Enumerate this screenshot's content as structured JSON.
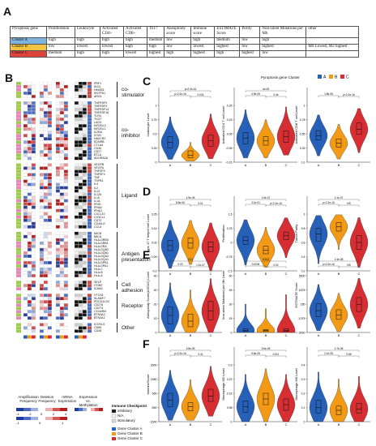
{
  "panels": {
    "a": "A",
    "b": "B",
    "c": "C",
    "d": "D",
    "e": "E",
    "f": "F"
  },
  "table": {
    "headers": [
      "Pyroptosis gene",
      "Proliferation",
      "Leukocyte",
      "Activated CD4+",
      "Activated CD8+",
      "Th17",
      "Aneuploidy score",
      "Immune score",
      "ESTIMATE Score",
      "Purity",
      "Non-silent Mutations per Mb",
      "other"
    ],
    "rows": [
      {
        "cluster": "Cluster A",
        "cls": "cA",
        "cells": [
          "high",
          "high",
          "high",
          "high",
          "medium",
          "low",
          "high",
          "medium",
          "low",
          "high",
          ""
        ]
      },
      {
        "cluster": "Cluster B",
        "cls": "cB",
        "cells": [
          "low",
          "lowest",
          "lowest",
          "high",
          "high",
          "low",
          "lowest",
          "highest",
          "low",
          "highest",
          "M0 Lowest, M2 highest"
        ]
      },
      {
        "cluster": "Cluster C",
        "cls": "cC",
        "cells": [
          "medium",
          "high",
          "high",
          "lowest",
          "highest",
          "high",
          "highest",
          "high",
          "highest",
          "low",
          ""
        ]
      }
    ]
  },
  "heatmap": {
    "column_labels": [
      "Amplification Frequency",
      "Deletion Frequency",
      "mRNA Expression",
      "Expression vs. Methylation"
    ],
    "genes": [
      "PRF1",
      "IDO1",
      "HMGB1",
      "ENTPD1",
      "ARG1",
      "",
      "TNFRSF9",
      "TNFRSF4",
      "TNFRSF14",
      "TNFRSF18",
      "TLR4",
      "TIGIT",
      "LAG3",
      "KIR2DL3",
      "KIR2DL1",
      "IL2RA",
      "ICOS",
      "HAVCR2",
      "EDNRB",
      "CTLA4",
      "CD40",
      "CD27",
      "BTLA",
      "ADORA2A",
      "",
      "VEGFB",
      "VEGFA",
      "TNFSF9",
      "TNFSF4",
      "TNF",
      "TGFB1",
      "IL4",
      "IL2",
      "IL13",
      "IL12A",
      "IL10",
      "IL1A",
      "IFNG",
      "IFNA2",
      "IFNA1",
      "CXCL10",
      "CX3CL1",
      "CD70",
      "CD40LG",
      "CCL5",
      "",
      "MICB",
      "MICA",
      "HLA-DRB5",
      "HLA-DRB1",
      "HLA-DRA",
      "HLA-DQB2",
      "HLA-DQB1",
      "HLA-DQA2",
      "HLA-DQA1",
      "HLA-DPB1",
      "HLA-DPA1",
      "HLA-C",
      "HLA-B",
      "HLA-A",
      "",
      "SELP",
      "ITGB2",
      "ICAM1",
      "",
      "VTCN1",
      "SLAMF7",
      "PDCD1LG2",
      "CD276",
      "CD274",
      "C10orf54",
      "BTN3A2",
      "BTN3A1",
      "",
      "ICOSLG",
      "CD80",
      "CD28"
    ],
    "groups": [
      "co-stimulator",
      "co-inhibitor",
      "Ligand",
      "Antigen presentation",
      "Cell adhesion",
      "Receptor",
      "Other"
    ],
    "legend_title": "Immune Checkpoint",
    "legend_items": [
      "inhibitory",
      "N/A",
      "stimulatory"
    ],
    "cluster_legend": [
      "Gene Cluster A",
      "Gene Cluster B",
      "Gene Cluster C"
    ],
    "scale_ticks_1": [
      "-4",
      "-2",
      "0",
      "2",
      "4"
    ],
    "scale_ticks_2": [
      "-1",
      "0",
      "1"
    ]
  },
  "violin_legend": {
    "title": "Pyroptosis gene Cluster",
    "items": [
      "A",
      "B",
      "C"
    ]
  },
  "colors": {
    "A": "#2660b8",
    "B": "#f29a16",
    "C": "#d62e32"
  },
  "chart_data": [
    {
      "type": "violin",
      "panel": "C",
      "ylabel": "Leukocyte Level",
      "categories": [
        "A",
        "B",
        "C"
      ],
      "median": [
        0.35,
        0.12,
        0.38
      ],
      "q1": [
        0.25,
        0.08,
        0.28
      ],
      "q3": [
        0.45,
        0.2,
        0.48
      ],
      "min": [
        0.05,
        0.02,
        0.06
      ],
      "max": [
        0.8,
        0.35,
        0.85
      ],
      "ylim": [
        0,
        1
      ],
      "annotations": [
        "p<2.2e-16",
        "0.031",
        "p<2.2e-16"
      ]
    },
    {
      "type": "violin",
      "panel": "C",
      "ylabel": "Activated CD4 T cell Level",
      "categories": [
        "A",
        "B",
        "C"
      ],
      "median": [
        0.02,
        0.0,
        0.03
      ],
      "q1": [
        -0.02,
        -0.03,
        -0.01
      ],
      "q3": [
        0.06,
        0.03,
        0.07
      ],
      "min": [
        -0.12,
        -0.12,
        -0.1
      ],
      "max": [
        0.22,
        0.15,
        0.24
      ],
      "ylim": [
        -0.15,
        0.25
      ],
      "annotations": [
        "4.9e-05",
        "0.4e",
        "4e-05"
      ]
    },
    {
      "type": "violin",
      "panel": "C",
      "ylabel": "Activated CD8 T cell Level",
      "categories": [
        "A",
        "B",
        "C"
      ],
      "median": [
        0.52,
        0.4,
        0.62
      ],
      "q1": [
        0.45,
        0.34,
        0.54
      ],
      "q3": [
        0.6,
        0.47,
        0.72
      ],
      "min": [
        0.2,
        0.15,
        0.25
      ],
      "max": [
        0.85,
        0.7,
        0.95
      ],
      "ylim": [
        0.1,
        1
      ],
      "annotations": [
        "1.8e-05",
        "p<2.2e-16"
      ]
    },
    {
      "type": "violin",
      "panel": "D",
      "ylabel": "Type 17 T helper cell Level",
      "categories": [
        "A",
        "B",
        "C"
      ],
      "median": [
        0.0,
        0.02,
        -0.01
      ],
      "q1": [
        -0.04,
        -0.02,
        -0.05
      ],
      "q3": [
        0.04,
        0.06,
        0.03
      ],
      "min": [
        -0.18,
        -0.15,
        -0.2
      ],
      "max": [
        0.2,
        0.2,
        0.18
      ],
      "ylim": [
        -0.2,
        0.25
      ],
      "annotations": [
        "8.6e-06",
        "0.01",
        "4.9e-05"
      ]
    },
    {
      "type": "violin",
      "panel": "D",
      "ylabel": "Proliferation",
      "categories": [
        "A",
        "B",
        "C"
      ],
      "median": [
        0.1,
        -0.4,
        0.35
      ],
      "q1": [
        -0.1,
        -0.6,
        0.15
      ],
      "q3": [
        0.3,
        -0.2,
        0.55
      ],
      "min": [
        -1.2,
        -1.3,
        -0.8
      ],
      "max": [
        1.2,
        0.8,
        1.3
      ],
      "ylim": [
        -1.5,
        1.5
      ],
      "annotations": [
        "3.1e-01",
        "p<2.2e-16",
        "1.9e-07"
      ]
    },
    {
      "type": "violin",
      "panel": "D",
      "ylabel": "Tumor Purity",
      "categories": [
        "A",
        "B",
        "C"
      ],
      "median": [
        0.72,
        0.82,
        0.6
      ],
      "q1": [
        0.62,
        0.76,
        0.5
      ],
      "q3": [
        0.8,
        0.88,
        0.7
      ],
      "min": [
        0.3,
        0.5,
        0.25
      ],
      "max": [
        0.98,
        0.99,
        0.95
      ],
      "ylim": [
        0.2,
        1
      ],
      "annotations": [
        "p<2.2e-16",
        "NS",
        "2.1e-07"
      ]
    },
    {
      "type": "violin",
      "panel": "E",
      "ylabel": "Aneuploidy Score(ASCAT) Level",
      "categories": [
        "A",
        "B",
        "C"
      ],
      "median": [
        12,
        8,
        15
      ],
      "q1": [
        6,
        4,
        9
      ],
      "q3": [
        18,
        13,
        22
      ],
      "min": [
        0,
        0,
        0
      ],
      "max": [
        35,
        30,
        38
      ],
      "ylim": [
        0,
        40
      ],
      "annotations": [
        "0.02",
        "1.1e-07",
        "0.01"
      ]
    },
    {
      "type": "violin",
      "panel": "E",
      "ylabel": "Non-silent Mutations per Mb Level",
      "categories": [
        "A",
        "B",
        "C"
      ],
      "median": [
        2,
        2,
        2
      ],
      "q1": [
        1,
        1,
        1
      ],
      "q3": [
        4,
        3,
        4
      ],
      "min": [
        0,
        0,
        0
      ],
      "max": [
        30,
        25,
        40
      ],
      "ylim": [
        0,
        60
      ],
      "annotations": [
        "0.0034",
        "0.02",
        "0.013"
      ]
    },
    {
      "type": "violin",
      "panel": "E",
      "ylabel": "ESTIMATE Score",
      "categories": [
        "A",
        "B",
        "C"
      ],
      "median": [
        -500,
        -1000,
        200
      ],
      "q1": [
        -1200,
        -1500,
        -600
      ],
      "q3": [
        300,
        -400,
        1000
      ],
      "min": [
        -2800,
        -2900,
        -2500
      ],
      "max": [
        2500,
        1500,
        3200
      ],
      "ylim": [
        -3000,
        3500
      ],
      "annotations": [
        "p<2.2e-16",
        "NS",
        "1.4e-08"
      ]
    },
    {
      "type": "violin",
      "panel": "F",
      "ylabel": "ImmuneScore",
      "categories": [
        "A",
        "B",
        "C"
      ],
      "median": [
        0,
        -500,
        300
      ],
      "q1": [
        -500,
        -800,
        -100
      ],
      "q3": [
        500,
        -200,
        800
      ],
      "min": [
        -1500,
        -1500,
        -1200
      ],
      "max": [
        2200,
        1500,
        2500
      ],
      "ylim": [
        -1600,
        2600
      ],
      "annotations": [
        "p<2.2e-16",
        "0.41",
        "3.6e-05"
      ]
    },
    {
      "type": "violin",
      "panel": "F",
      "ylabel": "Macrophage M2 Level",
      "categories": [
        "A",
        "B",
        "C"
      ],
      "median": [
        0.08,
        0.12,
        0.09
      ],
      "q1": [
        0.05,
        0.09,
        0.06
      ],
      "q3": [
        0.11,
        0.15,
        0.12
      ],
      "min": [
        0.0,
        0.0,
        0.0
      ],
      "max": [
        0.25,
        0.28,
        0.25
      ],
      "ylim": [
        0,
        0.3
      ],
      "annotations": [
        "5.6e-05",
        "0.011",
        "3.6e-05"
      ]
    },
    {
      "type": "violin",
      "panel": "F",
      "ylabel": "Macrophage M0 Level",
      "categories": [
        "A",
        "B",
        "C"
      ],
      "median": [
        0.1,
        0.08,
        0.09
      ],
      "q1": [
        0.06,
        0.05,
        0.06
      ],
      "q3": [
        0.15,
        0.11,
        0.13
      ],
      "min": [
        0.0,
        0.0,
        0.0
      ],
      "max": [
        0.35,
        0.3,
        0.32
      ],
      "ylim": [
        0,
        0.4
      ],
      "annotations": [
        "2.1e-05",
        "0.85",
        "2.7e-05"
      ]
    }
  ]
}
